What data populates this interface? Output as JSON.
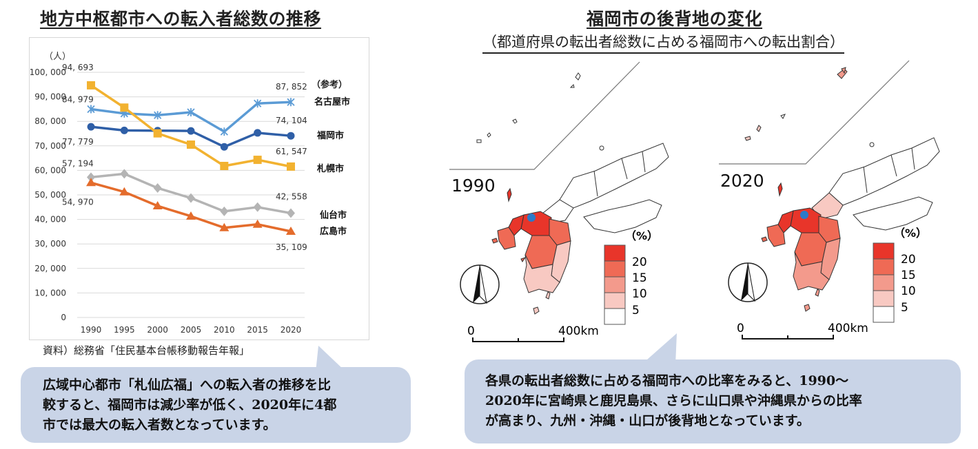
{
  "left": {
    "title": "地方中枢都市への転入者総数の推移",
    "source": "資料）総務省「住民基本台帳移動報告年報」",
    "bubble_lines": [
      "広域中心都市「札仙広福」への転入者の推移を比",
      "較すると、福岡市は減少率が低く、2020年に4都",
      "市では最大の転入者数となっています。"
    ]
  },
  "chart_data": {
    "type": "line",
    "x": [
      1990,
      1995,
      2000,
      2005,
      2010,
      2015,
      2020
    ],
    "ylim": [
      0,
      100000
    ],
    "yticks": [
      0,
      10000,
      20000,
      30000,
      40000,
      50000,
      60000,
      70000,
      80000,
      90000,
      100000
    ],
    "ytick_labels": [
      "0",
      "10, 000",
      "20, 000",
      "30, 000",
      "40, 000",
      "50, 000",
      "60, 000",
      "70, 000",
      "80, 000",
      "90, 000",
      "100, 000"
    ],
    "ylabel": "（人）",
    "grid": "horizontal",
    "reference_note": "（参考）",
    "series": [
      {
        "name": "名古屋市",
        "color": "#5b9bd5",
        "marker": "star",
        "values": [
          84979,
          83200,
          82500,
          83700,
          75800,
          87300,
          87852
        ],
        "labels": {
          "first": "84, 979",
          "last": "87, 852"
        }
      },
      {
        "name": "福岡市",
        "color": "#2f5fa7",
        "marker": "circle",
        "values": [
          77779,
          76300,
          76200,
          76100,
          69600,
          75300,
          74104
        ],
        "labels": {
          "first": "77, 779",
          "last": "74, 104"
        }
      },
      {
        "name": "札幌市",
        "color": "#f2b230",
        "marker": "square",
        "values": [
          94693,
          85600,
          75100,
          70500,
          61800,
          64300,
          61547
        ],
        "labels": {
          "first": "94, 693",
          "last": "61, 547"
        }
      },
      {
        "name": "仙台市",
        "color": "#b4b4b4",
        "marker": "diamond",
        "values": [
          57194,
          58600,
          52800,
          48700,
          43300,
          45000,
          42558
        ],
        "labels": {
          "first": "57, 194",
          "last": "42, 558"
        }
      },
      {
        "name": "広島市",
        "color": "#e46c2c",
        "marker": "triangle",
        "values": [
          54970,
          51200,
          45500,
          41300,
          36600,
          38000,
          35109
        ],
        "labels": {
          "first": "54, 970",
          "last": "35, 109"
        }
      }
    ]
  },
  "right": {
    "title": "福岡市の後背地の変化",
    "subtitle": "（都道府県の転出者総数に占める福岡市への転出割合）",
    "maps": [
      {
        "year": "1990",
        "scale_start": "0",
        "scale_end": "400km",
        "legend_unit": "（%）",
        "legend": [
          "20",
          "15",
          "10",
          "5"
        ]
      },
      {
        "year": "2020",
        "scale_start": "0",
        "scale_end": "400km",
        "legend_unit": "（%）",
        "legend": [
          "20",
          "15",
          "10",
          "5"
        ]
      }
    ],
    "legend_colors": [
      "#e8352a",
      "#ef6a55",
      "#f39a8c",
      "#f8c9c2",
      "#ffffff"
    ],
    "bubble_lines": [
      "各県の転出者総数に占める福岡市への比率をみると、1990～",
      "2020年に宮崎県と鹿児島県、さらに山口県や沖縄県からの比率",
      "が高まり、九州・沖縄・山口が後背地となっています。"
    ]
  }
}
